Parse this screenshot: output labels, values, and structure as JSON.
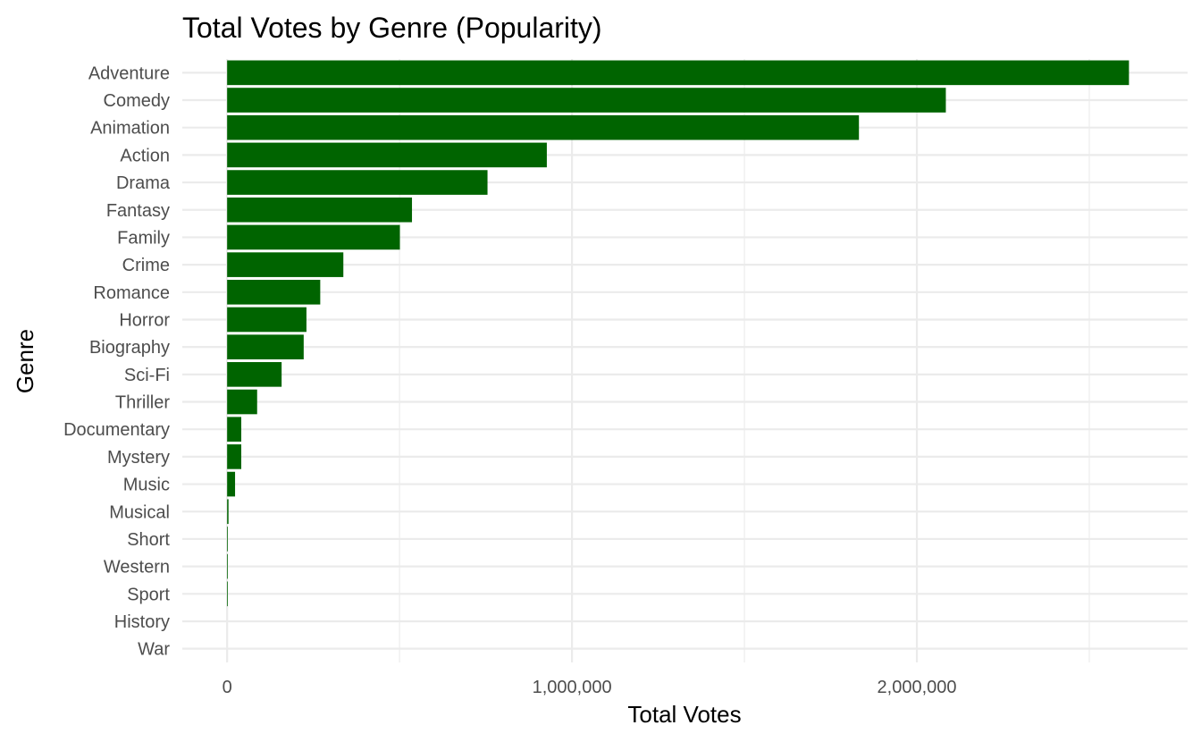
{
  "chart_data": {
    "type": "bar",
    "orientation": "horizontal",
    "title": "Total Votes by Genre (Popularity)",
    "xlabel": "Total Votes",
    "ylabel": "Genre",
    "categories": [
      "Adventure",
      "Comedy",
      "Animation",
      "Action",
      "Drama",
      "Fantasy",
      "Family",
      "Crime",
      "Romance",
      "Horror",
      "Biography",
      "Sci-Fi",
      "Thriller",
      "Documentary",
      "Mystery",
      "Music",
      "Musical",
      "Short",
      "Western",
      "Sport",
      "History",
      "War"
    ],
    "values": [
      2615000,
      2084000,
      1832000,
      927000,
      755000,
      536000,
      501000,
      337000,
      270000,
      230000,
      222000,
      158000,
      87000,
      41000,
      41000,
      23000,
      4000,
      2000,
      2000,
      2000,
      0,
      0
    ],
    "xlim": [
      -130000,
      2785000
    ],
    "xticks": [
      0,
      1000000,
      2000000
    ],
    "xtick_labels": [
      "0",
      "1,000,000",
      "2,000,000"
    ],
    "grid": true,
    "legend": "none",
    "bar_color": "#006400"
  }
}
